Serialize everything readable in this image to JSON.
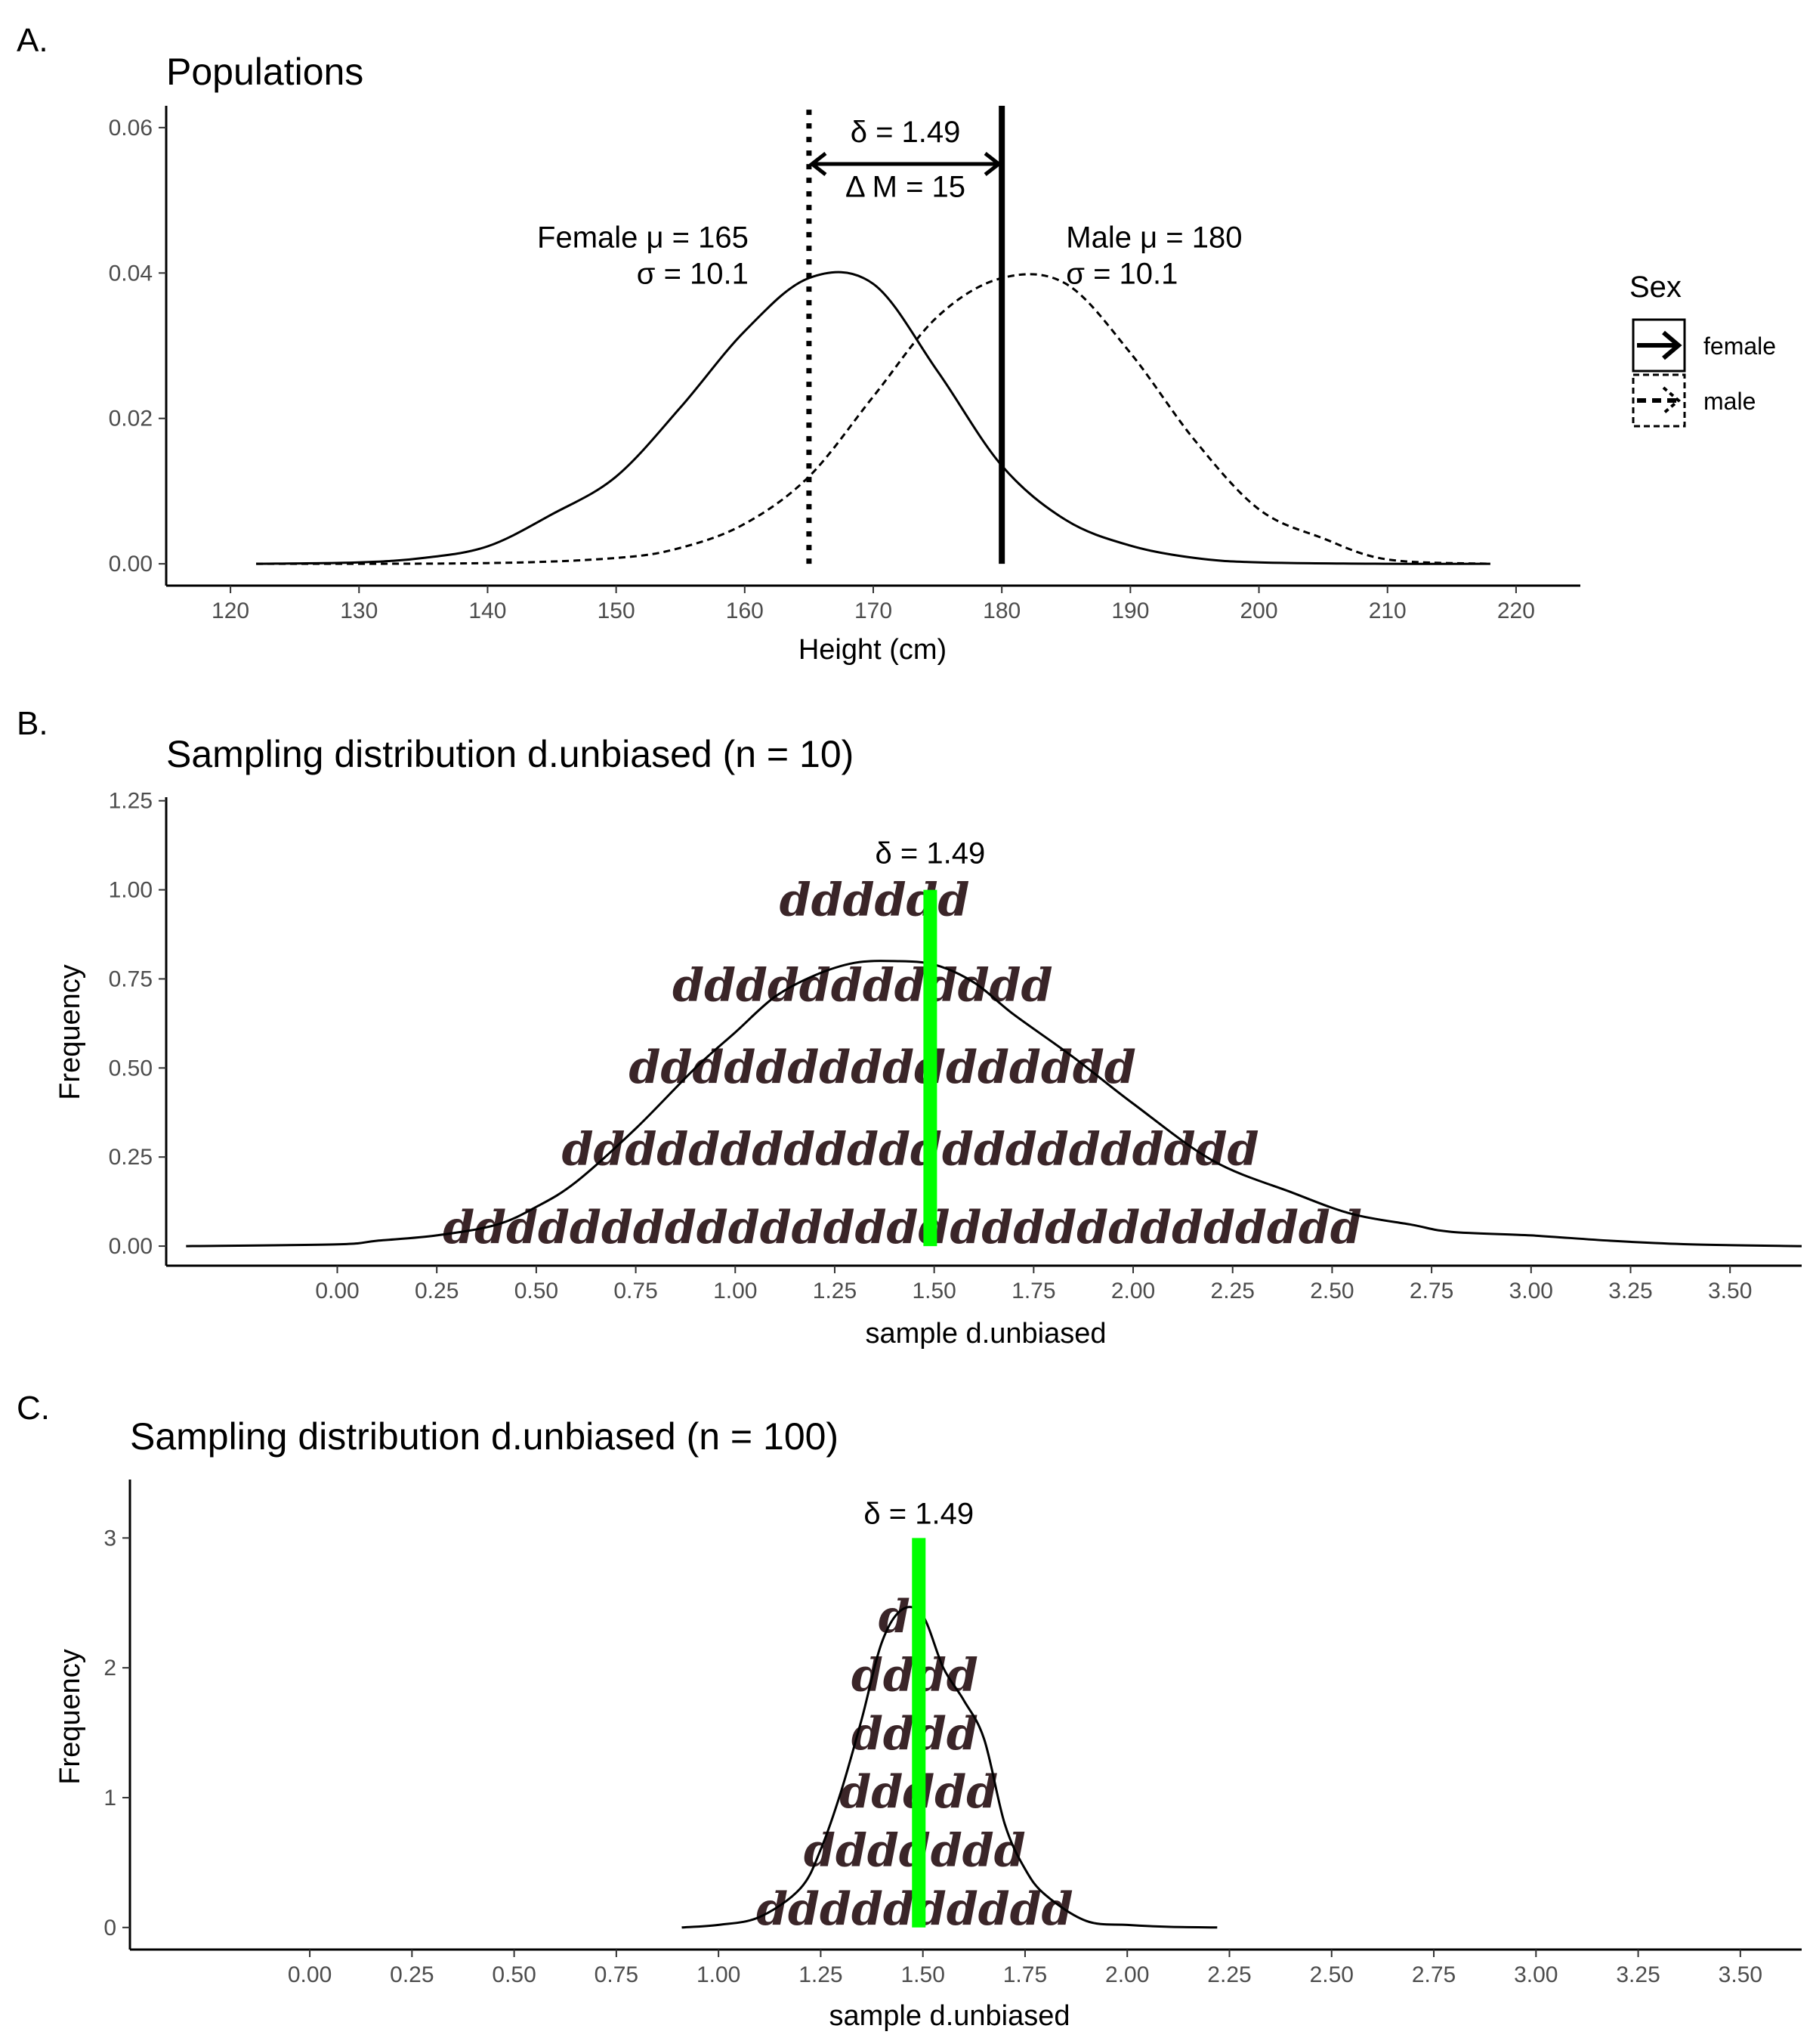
{
  "colors": {
    "axis": "#000000",
    "tick_text": "#4d4d4d",
    "delta_line": "#00ff00",
    "d_marks": "#3a2528"
  },
  "panels": {
    "a": {
      "letter": "A."
    },
    "b": {
      "letter": "B."
    },
    "c": {
      "letter": "C."
    }
  },
  "chart_data": [
    {
      "id": "populations",
      "type": "line",
      "title": "Populations",
      "xlabel": "Height (cm)",
      "ylabel": "",
      "xlim": [
        115,
        225
      ],
      "ylim": [
        -0.003,
        0.063
      ],
      "xticks": [
        120,
        130,
        140,
        150,
        160,
        170,
        180,
        190,
        200,
        210,
        220
      ],
      "xtick_labels": [
        "120",
        "130",
        "140",
        "150",
        "160",
        "170",
        "180",
        "190",
        "200",
        "210",
        "220"
      ],
      "yticks": [
        0,
        0.02,
        0.04,
        0.06
      ],
      "ytick_labels": [
        "0.00",
        "0.02",
        "0.04",
        "0.06"
      ],
      "grid": false,
      "legend": {
        "title": "Sex",
        "position": "right",
        "entries": [
          "female",
          "male"
        ]
      },
      "series": [
        {
          "name": "female",
          "linestyle": "solid",
          "x": [
            122,
            130,
            135,
            140,
            145,
            150,
            155,
            160,
            165,
            170,
            175,
            180,
            185,
            190,
            195,
            200,
            210,
            218
          ],
          "y": [
            0.0,
            0.0002,
            0.0008,
            0.0024,
            0.0068,
            0.012,
            0.0215,
            0.032,
            0.0393,
            0.0385,
            0.0265,
            0.0135,
            0.006,
            0.0025,
            0.0008,
            0.0002,
            0.0,
            0.0
          ]
        },
        {
          "name": "male",
          "linestyle": "dashed",
          "x": [
            122,
            140,
            150,
            155,
            160,
            165,
            170,
            175,
            180,
            185,
            190,
            195,
            200,
            205,
            210,
            218
          ],
          "y": [
            0.0,
            0.0001,
            0.0008,
            0.0022,
            0.0055,
            0.012,
            0.023,
            0.034,
            0.0393,
            0.0385,
            0.029,
            0.017,
            0.0075,
            0.0035,
            0.0006,
            0.0
          ]
        }
      ],
      "vlines": [
        {
          "x": 165,
          "y_top": 0.0625,
          "style": "dotted"
        },
        {
          "x": 180,
          "y_top": 0.063,
          "style": "solid"
        }
      ],
      "arrow": {
        "x_from": 165,
        "x_to": 180,
        "y": 0.055
      },
      "annotations": [
        {
          "text": "δ = 1.49",
          "x": 172.5,
          "y": 0.058,
          "anchor": "middle"
        },
        {
          "text": "Δ M = 15",
          "x": 172.5,
          "y": 0.0505,
          "anchor": "middle"
        },
        {
          "text": "Female μ = 165",
          "x": 165,
          "y": 0.0435,
          "anchor": "end"
        },
        {
          "text": "σ = 10.1",
          "x": 165,
          "y": 0.0385,
          "anchor": "end"
        },
        {
          "text": "Male μ = 180",
          "x": 185,
          "y": 0.0435,
          "anchor": "start"
        },
        {
          "text": "σ = 10.1",
          "x": 185,
          "y": 0.0385,
          "anchor": "start"
        }
      ]
    },
    {
      "id": "sampling_n10",
      "type": "area",
      "title": "Sampling distribution d.unbiased (n = 10)",
      "xlabel": "sample d.unbiased",
      "ylabel": "Frequency",
      "xlim": [
        -0.43,
        3.68
      ],
      "ylim": [
        -0.055,
        1.26
      ],
      "xticks": [
        0,
        0.25,
        0.5,
        0.75,
        1,
        1.25,
        1.5,
        1.75,
        2,
        2.25,
        2.5,
        2.75,
        3,
        3.25,
        3.5
      ],
      "xtick_labels": [
        "0.00",
        "0.25",
        "0.50",
        "0.75",
        "1.00",
        "1.25",
        "1.50",
        "1.75",
        "2.00",
        "2.25",
        "2.50",
        "2.75",
        "3.00",
        "3.25",
        "3.50"
      ],
      "yticks": [
        0,
        0.25,
        0.5,
        0.75,
        1,
        1.25
      ],
      "ytick_labels": [
        "0.00",
        "0.25",
        "0.50",
        "0.75",
        "1.00",
        "1.25"
      ],
      "grid": false,
      "density": {
        "x": [
          -0.38,
          0.0,
          0.1,
          0.25,
          0.4,
          0.5,
          0.6,
          0.75,
          0.9,
          1.0,
          1.1,
          1.2,
          1.3,
          1.4,
          1.5,
          1.6,
          1.7,
          1.85,
          2.0,
          2.2,
          2.4,
          2.55,
          2.7,
          2.8,
          3.0,
          3.2,
          3.4,
          3.68
        ],
        "y": [
          0.0,
          0.005,
          0.015,
          0.03,
          0.06,
          0.11,
          0.18,
          0.33,
          0.5,
          0.6,
          0.7,
          0.76,
          0.795,
          0.8,
          0.79,
          0.74,
          0.65,
          0.53,
          0.4,
          0.24,
          0.15,
          0.09,
          0.06,
          0.04,
          0.03,
          0.015,
          0.005,
          0.0
        ]
      },
      "delta_line": {
        "x": 1.49,
        "y_top": 1.0,
        "label": "δ = 1.49",
        "label_y": 1.1
      },
      "d_rows": [
        {
          "text": "ddddddddddddddddddddddddddddd",
          "x_center": 1.42,
          "y": 0.0
        },
        {
          "text": "dddddddddddddddddddddd",
          "x_center": 1.44,
          "y": 0.22
        },
        {
          "text": "dddddddddddddddd",
          "x_center": 1.37,
          "y": 0.45
        },
        {
          "text": "dddddddddddd",
          "x_center": 1.32,
          "y": 0.68
        },
        {
          "text": "dddddd",
          "x_center": 1.35,
          "y": 0.92
        }
      ]
    },
    {
      "id": "sampling_n100",
      "type": "area",
      "title": "Sampling distribution d.unbiased (n = 100)",
      "xlabel": "sample d.unbiased",
      "ylabel": "Frequency",
      "xlim": [
        -0.44,
        3.65
      ],
      "ylim": [
        -0.17,
        3.45
      ],
      "xticks": [
        0,
        0.25,
        0.5,
        0.75,
        1,
        1.25,
        1.5,
        1.75,
        2,
        2.25,
        2.5,
        2.75,
        3,
        3.25,
        3.5
      ],
      "xtick_labels": [
        "0.00",
        "0.25",
        "0.50",
        "0.75",
        "1.00",
        "1.25",
        "1.50",
        "1.75",
        "2.00",
        "2.25",
        "2.50",
        "2.75",
        "3.00",
        "3.25",
        "3.50"
      ],
      "yticks": [
        0,
        1,
        2,
        3
      ],
      "ytick_labels": [
        "0",
        "1",
        "2",
        "3"
      ],
      "grid": false,
      "density": {
        "x": [
          0.91,
          1.0,
          1.1,
          1.2,
          1.25,
          1.3,
          1.35,
          1.4,
          1.45,
          1.5,
          1.55,
          1.6,
          1.65,
          1.7,
          1.75,
          1.8,
          1.9,
          2.0,
          2.1,
          2.22
        ],
        "y": [
          0.0,
          0.02,
          0.08,
          0.3,
          0.6,
          1.05,
          1.6,
          2.2,
          2.45,
          2.4,
          2.0,
          1.75,
          1.45,
          0.8,
          0.45,
          0.25,
          0.05,
          0.02,
          0.005,
          0.0
        ]
      },
      "delta_line": {
        "x": 1.49,
        "y_top": 3.0,
        "label": "δ = 1.49",
        "label_y": 3.18
      },
      "d_rows": [
        {
          "text": "dddddddddd",
          "x_center": 1.48,
          "y": 0.0
        },
        {
          "text": "ddddddd",
          "x_center": 1.48,
          "y": 0.45
        },
        {
          "text": "ddddd",
          "x_center": 1.49,
          "y": 0.9
        },
        {
          "text": "dddd",
          "x_center": 1.48,
          "y": 1.35
        },
        {
          "text": "dddd",
          "x_center": 1.48,
          "y": 1.8
        },
        {
          "text": "d",
          "x_center": 1.43,
          "y": 2.25
        }
      ]
    }
  ]
}
